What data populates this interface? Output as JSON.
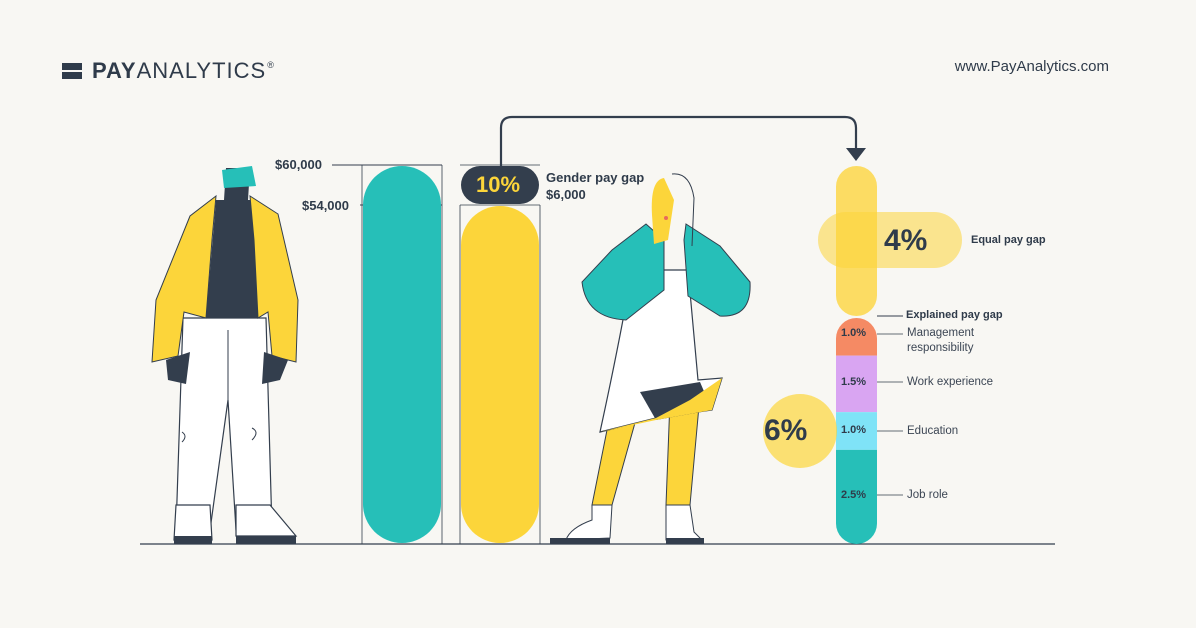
{
  "brand": {
    "name_bold": "PAY",
    "name_thin": "ANALYTICS",
    "registered_mark": "®",
    "url": "www.PayAnalytics.com"
  },
  "salaries": {
    "top_label": "$60,000",
    "lower_label": "$54,000"
  },
  "gender_gap": {
    "percent": "10%",
    "title": "Gender pay gap",
    "amount": "$6,000"
  },
  "equal_gap": {
    "percent": "4%",
    "label": "Equal pay gap"
  },
  "explained_gap": {
    "title": "Explained pay gap",
    "percent": "6%",
    "segments": [
      {
        "value": "1.0%",
        "label_line1": "Management",
        "label_line2": "responsibility",
        "color": "#f58a64"
      },
      {
        "value": "1.5%",
        "label_line1": "Work experience",
        "label_line2": "",
        "color": "#d9a5f2"
      },
      {
        "value": "1.0%",
        "label_line1": "Education",
        "label_line2": "",
        "color": "#7fe3f7"
      },
      {
        "value": "2.5%",
        "label_line1": "Job role",
        "label_line2": "",
        "color": "#26bfb8"
      }
    ]
  },
  "colors": {
    "teal": "#26bfb8",
    "yellow": "#fcd53a",
    "navy": "#333e4d",
    "background": "#f8f7f3"
  }
}
